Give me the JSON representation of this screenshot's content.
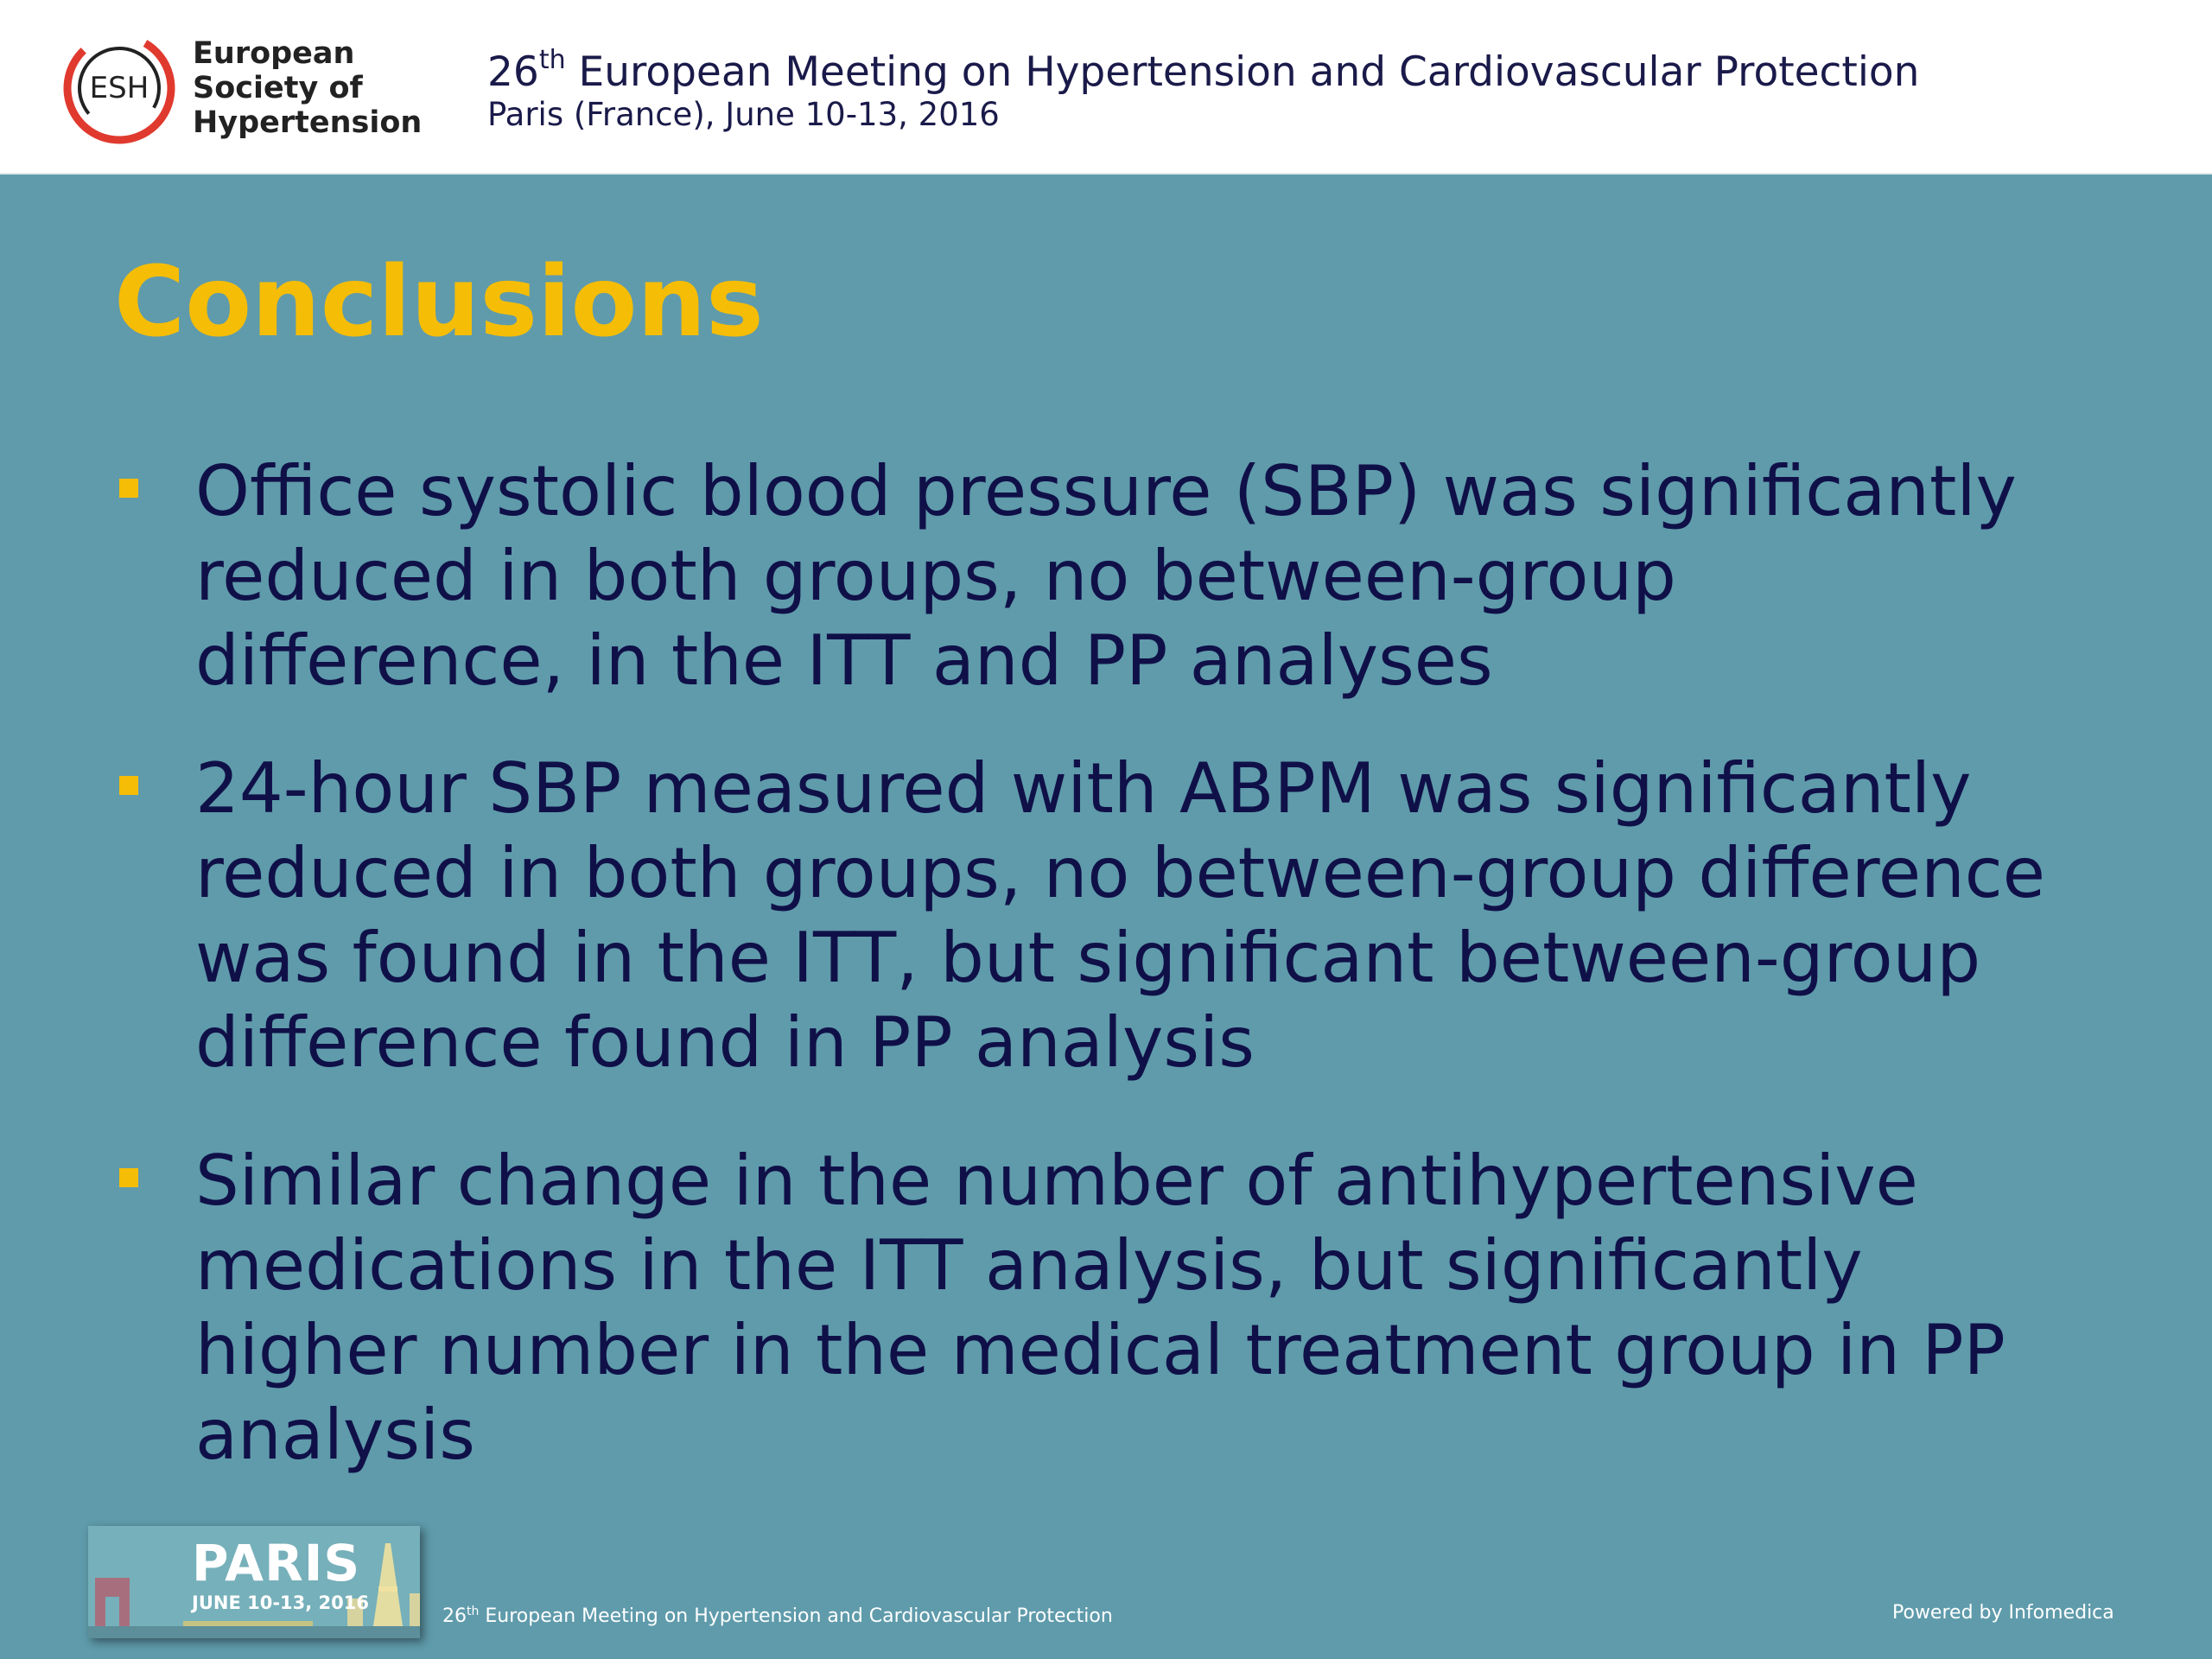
{
  "header": {
    "logo_abbr": "ESH",
    "logo_name_lines": [
      "European",
      "Society of",
      "Hypertension"
    ],
    "meeting_number": "26",
    "meeting_suffix": "th",
    "meeting_title": "European Meeting on Hypertension and Cardiovascular Protection",
    "meeting_place_date": "Paris (France), June 10-13, 2016"
  },
  "slide": {
    "title": "Conclusions",
    "bullets": [
      {
        "lines": [
          "Office systolic blood pressure (SBP) was significantly",
          "reduced in both groups, no between-group",
          "difference, in the ITT and PP analyses"
        ]
      },
      {
        "lines": [
          "24-hour SBP measured with ABPM was significantly",
          "reduced in both groups, no between-group difference",
          "was found in the ITT, but significant between-group",
          "difference found in PP analysis"
        ]
      },
      {
        "lines": [
          "Similar change in the number of antihypertensive",
          "medications in the ITT analysis, but significantly",
          "higher number in the medical treatment group in PP",
          "analysis"
        ]
      }
    ]
  },
  "footer": {
    "badge_city": "PARIS",
    "badge_date": "JUNE 10-13, 2016",
    "meeting_number": "26",
    "meeting_suffix": "th",
    "meeting_title": "European Meeting on Hypertension and Cardiovascular Protection",
    "powered_by": "Powered by Infomedica"
  },
  "colors": {
    "background": "#5f9bab",
    "title": "#f6bd06",
    "bullet_marker": "#f6bd06",
    "body_text": "#101048",
    "logo_ring": "#e03a2f"
  }
}
